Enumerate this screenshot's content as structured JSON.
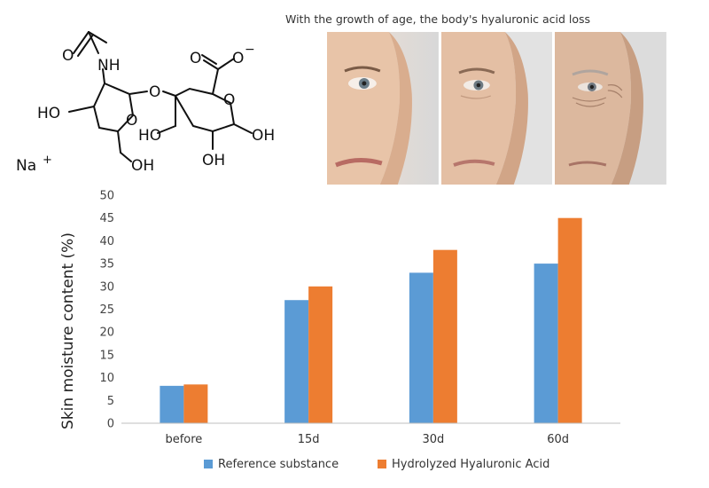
{
  "molecule": {
    "name": "sodium hyaluronate",
    "labels": {
      "o_carbonyl": "O",
      "nh": "NH",
      "ring_o_left": "O",
      "bridge_o": "O",
      "carboxyl_o": "O",
      "carboxyl_o_minus": "O",
      "minus": "−",
      "ring_o_right": "O",
      "ho_left": "HO",
      "ho_mid": "HO",
      "oh_right": "OH",
      "oh_bottom": "OH",
      "ch2oh": "OH",
      "counter_ion": "Na",
      "plus": "+"
    }
  },
  "photo": {
    "caption": "With the growth of age, the body's hyaluronic acid loss",
    "faces": [
      "young",
      "middle-aged",
      "elderly"
    ]
  },
  "chart_data": {
    "type": "bar",
    "categories": [
      "before",
      "15d",
      "30d",
      "60d"
    ],
    "series": [
      {
        "name": "Reference substance",
        "values": [
          8.2,
          27,
          33,
          35
        ],
        "color": "#5B9BD5"
      },
      {
        "name": "Hydrolyzed Hyaluronic Acid",
        "values": [
          8.5,
          30,
          38,
          45
        ],
        "color": "#ED7D31"
      }
    ],
    "ylabel": "Skin moisture content (%)",
    "xlabel": "",
    "ylim": [
      0,
      50
    ],
    "yticks": [
      0,
      5,
      10,
      15,
      20,
      25,
      30,
      35,
      40,
      45,
      50
    ],
    "grid": false,
    "legend": "bottom"
  }
}
